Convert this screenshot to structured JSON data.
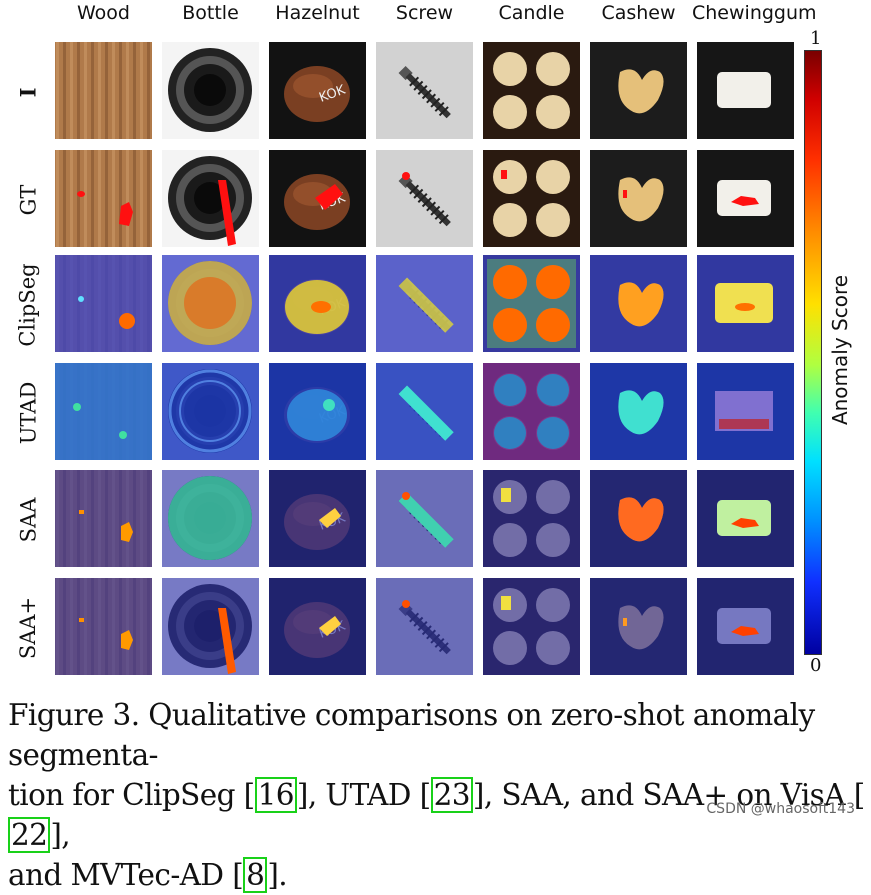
{
  "columns": [
    "Wood",
    "Bottle",
    "Hazelnut",
    "Screw",
    "Candle",
    "Cashew",
    "Chewinggum"
  ],
  "rows": [
    "I",
    "GT",
    "ClipSeg",
    "UTAD",
    "SAA",
    "SAA+"
  ],
  "colorbar": {
    "label": "Anomaly Score",
    "max": "1",
    "min": "0"
  },
  "caption": {
    "p1": "Figure 3. Qualitative comparisons on zero-shot anomaly segmenta-",
    "p2a": "tion for ClipSeg ",
    "r1": "16",
    "p2b": ", UTAD ",
    "r2": "23",
    "p2c": ", SAA, and SAA+ on VisA ",
    "r3": "22",
    "p2d": ",",
    "p3a": "and MVTec-AD ",
    "r4": "8",
    "p3b": "."
  },
  "watermark": "CSDN @whaosoft143",
  "colors": {
    "ref_border": "#19d119",
    "overlay_blue": "#2a2fa8"
  }
}
